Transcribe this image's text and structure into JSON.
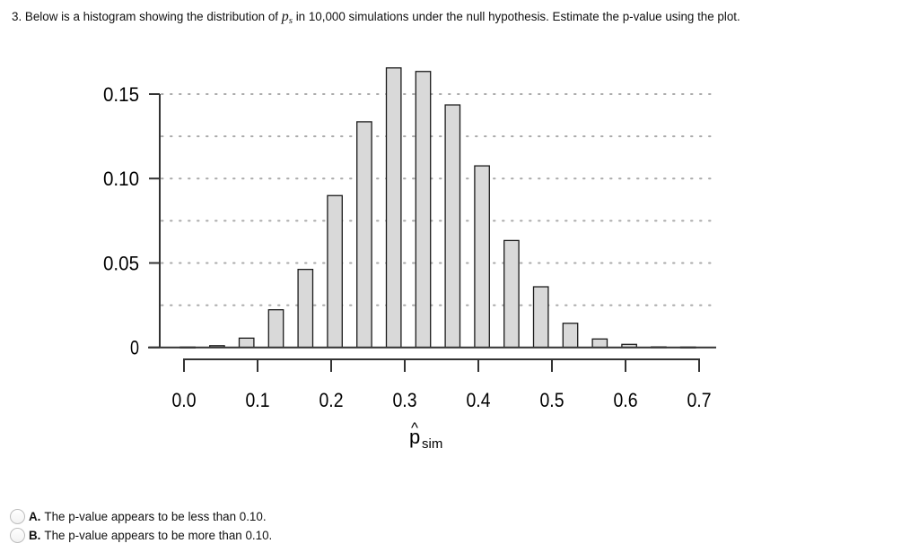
{
  "question": {
    "prefix": "3. Below is a histogram showing the distribution of ",
    "symbol": "p",
    "symbol_sub": "s",
    "suffix": " in 10,000 simulations under the null hypothesis. Estimate the p-value using the plot."
  },
  "chart_data": {
    "type": "bar",
    "title": "",
    "xlabel": "p̂sim",
    "xlabel_main": "p",
    "xlabel_hat": "^",
    "xlabel_sub": "sim",
    "ylabel": "",
    "xlim": [
      0.0,
      0.7
    ],
    "ylim": [
      0,
      0.15
    ],
    "x_ticks": [
      0.0,
      0.1,
      0.2,
      0.3,
      0.4,
      0.5,
      0.6,
      0.7
    ],
    "x_tick_labels": [
      "0.0",
      "0.1",
      "0.2",
      "0.3",
      "0.4",
      "0.5",
      "0.6",
      "0.7"
    ],
    "y_ticks": [
      0,
      0.05,
      0.1,
      0.15
    ],
    "y_tick_labels": [
      "0",
      "0.05",
      "0.10",
      "0.15"
    ],
    "grid": {
      "y": true,
      "style": "dotted",
      "step": 0.025
    },
    "bin_width": 0.04,
    "bar_width": 0.02,
    "x": [
      0.005,
      0.045,
      0.085,
      0.125,
      0.165,
      0.205,
      0.245,
      0.285,
      0.325,
      0.365,
      0.405,
      0.445,
      0.485,
      0.525,
      0.565,
      0.605,
      0.645,
      0.685
    ],
    "values": [
      0.0002,
      0.001,
      0.0055,
      0.0223,
      0.0462,
      0.0899,
      0.1336,
      0.1655,
      0.1634,
      0.1436,
      0.1075,
      0.0633,
      0.0359,
      0.0143,
      0.005,
      0.0018,
      0.0003,
      0.0002
    ],
    "colors": {
      "bar_fill": "#d9d9d9",
      "bar_stroke": "#1a1a1a",
      "grid": "#aaaaaa",
      "axis": "#333333"
    }
  },
  "options": [
    {
      "letter": "A.",
      "text": " The p-value appears to be less than 0.10."
    },
    {
      "letter": "B.",
      "text": " The p-value appears to be more than 0.10."
    }
  ]
}
